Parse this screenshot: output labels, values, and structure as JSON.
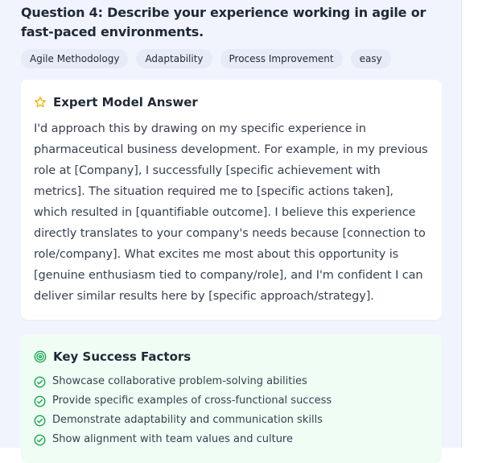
{
  "question": {
    "title": "Question 4: Describe your experience working in agile or fast-paced environments.",
    "tags": [
      "Agile Methodology",
      "Adaptability",
      "Process Improvement",
      "easy"
    ]
  },
  "expert_answer": {
    "heading": "Expert Model Answer",
    "icon": "star-icon",
    "text": "I'd approach this by drawing on my specific experience in pharmaceutical business development. For example, in my previous role at [Company], I successfully [specific achievement with metrics]. The situation required me to [specific actions taken], which resulted in [quantifiable outcome]. I believe this experience directly translates to your company's needs because [connection to role/company]. What excites me most about this opportunity is [genuine enthusiasm tied to company/role], and I'm confident I can deliver similar results here by [specific approach/strategy]."
  },
  "success_factors": {
    "heading": "Key Success Factors",
    "icon": "target-icon",
    "items": [
      "Showcase collaborative problem-solving abilities",
      "Provide specific examples of cross-functional success",
      "Demonstrate adaptability and communication skills",
      "Show alignment with team values and culture"
    ]
  },
  "colors": {
    "panel_bg": "#f1f4fd",
    "tag_bg": "#e6ebf7",
    "star": "#eab308",
    "success_green": "#16a34a",
    "success_bg": "#effdf4"
  }
}
